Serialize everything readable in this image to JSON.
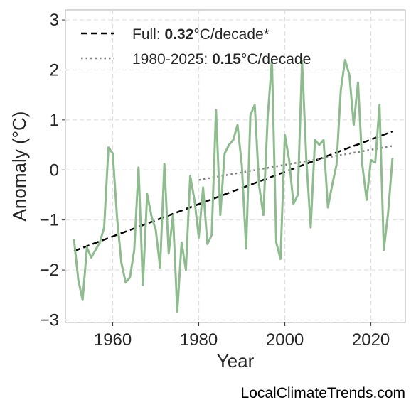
{
  "chart_data": {
    "type": "line",
    "xlabel": "Year",
    "ylabel": "Anomaly (°C)",
    "xlim": [
      1949,
      2028
    ],
    "ylim": [
      -3.05,
      3.2
    ],
    "x_ticks": [
      1960,
      1980,
      2000,
      2020
    ],
    "y_ticks": [
      -3,
      -2,
      -1,
      0,
      1,
      2,
      3
    ],
    "y_tick_labels": [
      "−3",
      "−2",
      "−1",
      "0",
      "1",
      "2",
      "3"
    ],
    "grid": true,
    "legend_position": "top-left",
    "credit": "LocalClimateTrends.com",
    "series": [
      {
        "color": "#8fbc8f",
        "x": [
          1951,
          1952,
          1953,
          1954,
          1955,
          1956,
          1957,
          1958,
          1959,
          1960,
          1961,
          1962,
          1963,
          1964,
          1965,
          1966,
          1967,
          1968,
          1969,
          1970,
          1971,
          1972,
          1973,
          1974,
          1975,
          1976,
          1977,
          1978,
          1979,
          1980,
          1981,
          1982,
          1983,
          1984,
          1985,
          1986,
          1987,
          1988,
          1989,
          1990,
          1991,
          1992,
          1993,
          1994,
          1995,
          1996,
          1997,
          1998,
          1999,
          2000,
          2001,
          2002,
          2003,
          2004,
          2005,
          2006,
          2007,
          2008,
          2009,
          2010,
          2011,
          2012,
          2013,
          2014,
          2015,
          2016,
          2017,
          2018,
          2019,
          2020,
          2021,
          2022,
          2023,
          2024,
          2025
        ],
        "y": [
          -1.4,
          -2.2,
          -2.6,
          -1.55,
          -1.75,
          -1.6,
          -1.45,
          -1.15,
          0.45,
          0.33,
          -0.95,
          -1.85,
          -2.25,
          -2.15,
          -1.6,
          0.05,
          -2.3,
          -0.48,
          -0.92,
          -1.2,
          -1.95,
          0.12,
          -1.67,
          -0.9,
          -2.83,
          -1.45,
          -2.0,
          -0.12,
          -0.6,
          -1.35,
          -0.35,
          -1.48,
          -1.3,
          1.2,
          -0.9,
          0.33,
          0.5,
          0.6,
          0.9,
          0.1,
          -1.57,
          1.1,
          1.3,
          -0.3,
          -0.9,
          1.05,
          2.2,
          -1.45,
          -1.78,
          0.7,
          0.2,
          -0.68,
          -0.5,
          2.18,
          0.2,
          -1.15,
          0.6,
          0.5,
          0.6,
          -0.75,
          -0.3,
          0.1,
          1.6,
          2.2,
          1.9,
          0.9,
          1.75,
          0.1,
          -0.6,
          0.2,
          0.15,
          1.3,
          -1.6,
          -0.85,
          0.22
        ]
      }
    ],
    "trends": [
      {
        "label_prefix": "Full: ",
        "label_value": "0.32",
        "label_suffix": "°C/decade*",
        "x": [
          1951,
          2025
        ],
        "y": [
          -1.62,
          0.77
        ],
        "color": "#000000",
        "style": "dashed"
      },
      {
        "label_prefix": "1980-2025: ",
        "label_value": "0.15",
        "label_suffix": "°C/decade",
        "x": [
          1980,
          2025
        ],
        "y": [
          -0.2,
          0.48
        ],
        "color": "#808080",
        "style": "dotted"
      }
    ]
  }
}
